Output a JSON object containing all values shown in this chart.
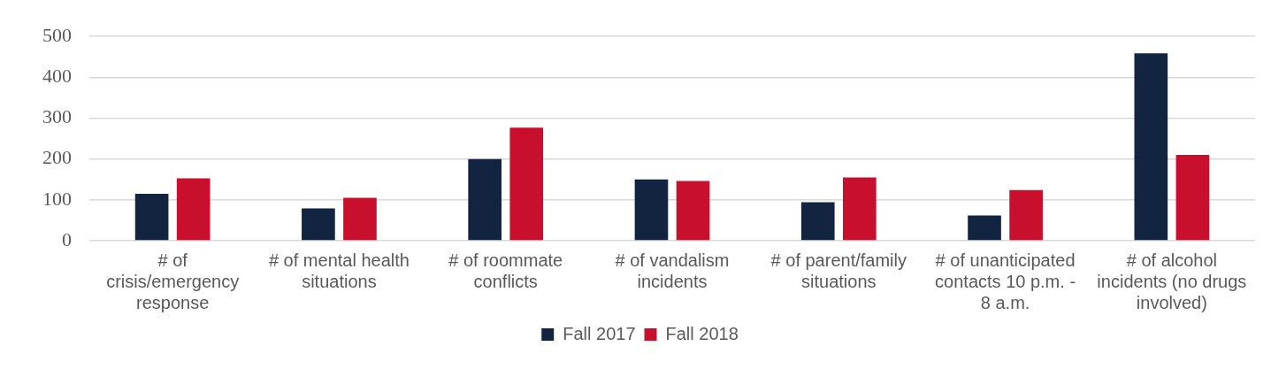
{
  "chart_data": {
    "type": "bar",
    "categories": [
      "# of crisis/emergency response",
      "# of mental health situations",
      "# of roommate conflicts",
      "# of vandalism incidents",
      "# of parent/family situations",
      "# of unanticipated contacts 10 p.m. - 8 a.m.",
      "# of alcohol incidents (no drugs involved)"
    ],
    "series": [
      {
        "name": "Fall 2017",
        "color": "#12243f",
        "values": [
          115,
          79,
          200,
          150,
          94,
          62,
          459
        ]
      },
      {
        "name": "Fall 2018",
        "color": "#c8102e",
        "values": [
          153,
          105,
          277,
          146,
          155,
          124,
          210
        ]
      }
    ],
    "ylim": [
      0,
      500
    ],
    "yticks": [
      0,
      100,
      200,
      300,
      400,
      500
    ],
    "grid": "y",
    "legend": "bottom"
  }
}
